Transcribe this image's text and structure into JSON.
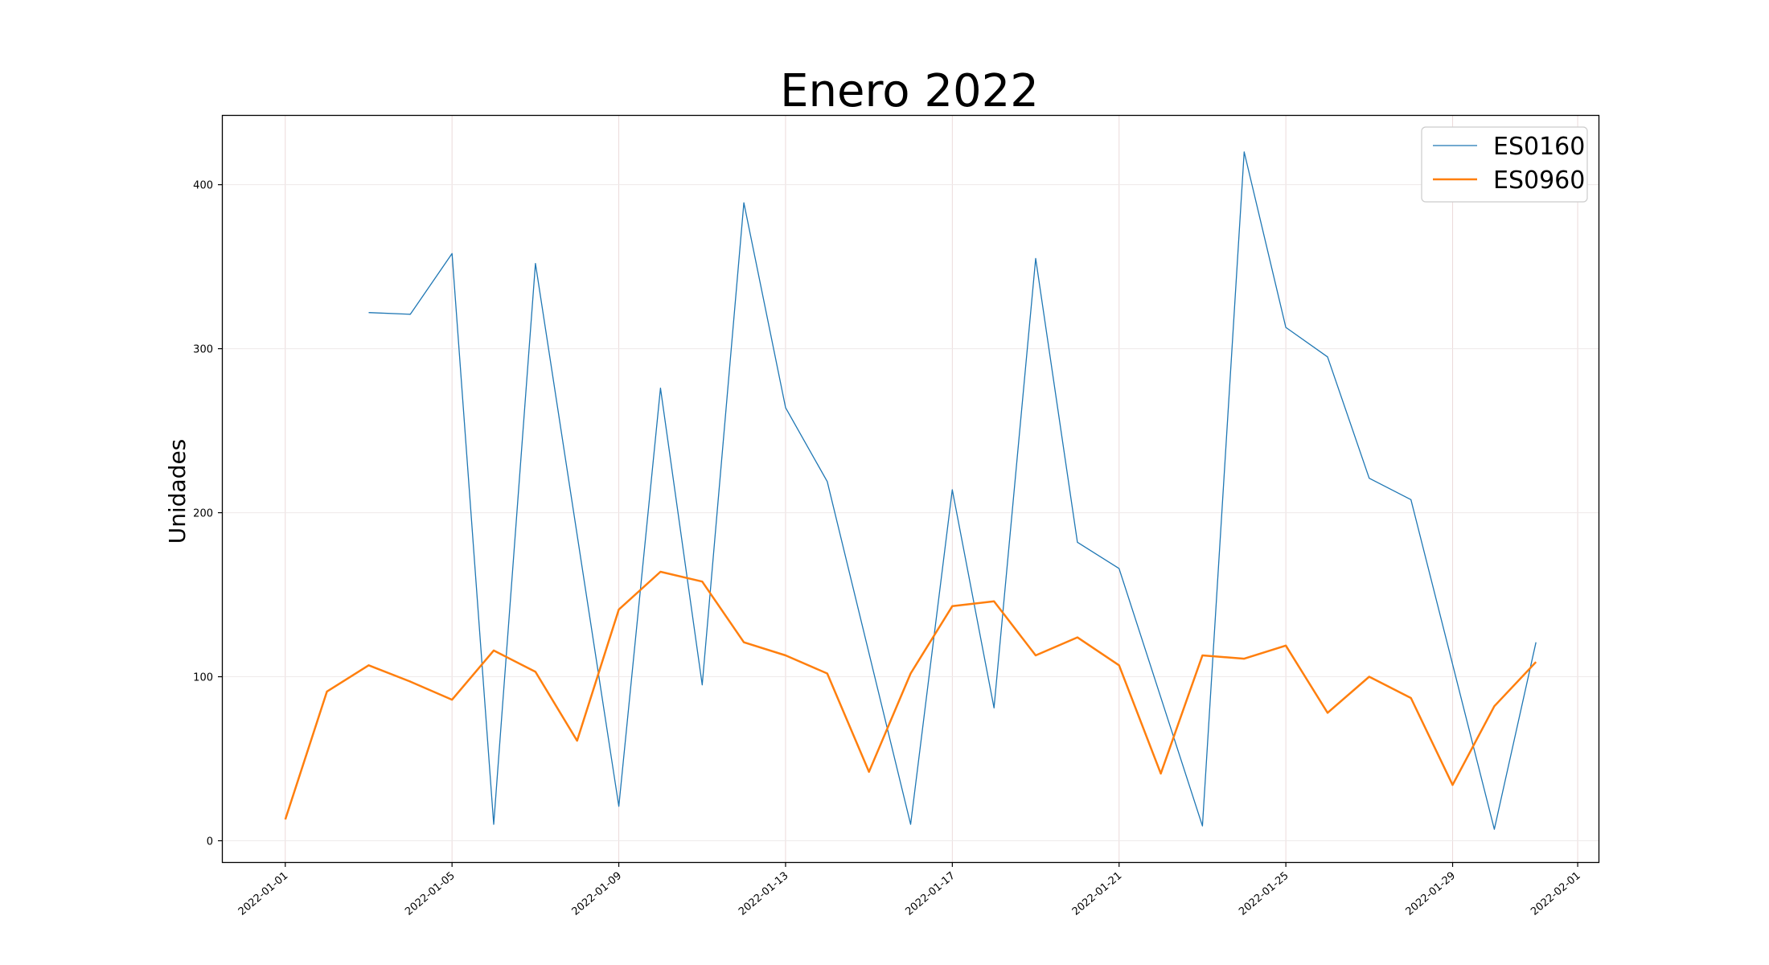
{
  "chart_data": {
    "type": "line",
    "title": "Enero 2022",
    "xlabel": "",
    "ylabel": "Unidades",
    "ylim": [
      -13,
      442
    ],
    "xlim_days": [
      -1.5,
      31.5
    ],
    "grid": true,
    "legend_position": "top-right",
    "x_ticks": [
      {
        "day": 0,
        "label": "2022-01-01"
      },
      {
        "day": 4,
        "label": "2022-01-05"
      },
      {
        "day": 8,
        "label": "2022-01-09"
      },
      {
        "day": 12,
        "label": "2022-01-13"
      },
      {
        "day": 16,
        "label": "2022-01-17"
      },
      {
        "day": 20,
        "label": "2022-01-21"
      },
      {
        "day": 24,
        "label": "2022-01-25"
      },
      {
        "day": 28,
        "label": "2022-01-29"
      },
      {
        "day": 31,
        "label": "2022-02-01"
      }
    ],
    "y_ticks": [
      0,
      100,
      200,
      300,
      400
    ],
    "series": [
      {
        "name": "ES0160",
        "color": "#1f77b4",
        "points": [
          {
            "day": 2,
            "value": 322
          },
          {
            "day": 3,
            "value": 321
          },
          {
            "day": 4,
            "value": 358
          },
          {
            "day": 5,
            "value": 10
          },
          {
            "day": 6,
            "value": 352
          },
          {
            "day": 8,
            "value": 21
          },
          {
            "day": 9,
            "value": 276
          },
          {
            "day": 10,
            "value": 95
          },
          {
            "day": 11,
            "value": 389
          },
          {
            "day": 12,
            "value": 264
          },
          {
            "day": 13,
            "value": 219
          },
          {
            "day": 15,
            "value": 10
          },
          {
            "day": 16,
            "value": 214
          },
          {
            "day": 17,
            "value": 81
          },
          {
            "day": 18,
            "value": 355
          },
          {
            "day": 19,
            "value": 182
          },
          {
            "day": 20,
            "value": 166
          },
          {
            "day": 22,
            "value": 9
          },
          {
            "day": 23,
            "value": 420
          },
          {
            "day": 24,
            "value": 313
          },
          {
            "day": 25,
            "value": 295
          },
          {
            "day": 26,
            "value": 221
          },
          {
            "day": 27,
            "value": 208
          },
          {
            "day": 29,
            "value": 7
          },
          {
            "day": 30,
            "value": 121
          }
        ]
      },
      {
        "name": "ES0960",
        "color": "#ff7f0e",
        "points": [
          {
            "day": 0,
            "value": 13
          },
          {
            "day": 1,
            "value": 91
          },
          {
            "day": 2,
            "value": 107
          },
          {
            "day": 3,
            "value": 97
          },
          {
            "day": 4,
            "value": 86
          },
          {
            "day": 5,
            "value": 116
          },
          {
            "day": 6,
            "value": 103
          },
          {
            "day": 7,
            "value": 61
          },
          {
            "day": 8,
            "value": 141
          },
          {
            "day": 9,
            "value": 164
          },
          {
            "day": 10,
            "value": 158
          },
          {
            "day": 11,
            "value": 121
          },
          {
            "day": 12,
            "value": 113
          },
          {
            "day": 13,
            "value": 102
          },
          {
            "day": 14,
            "value": 42
          },
          {
            "day": 15,
            "value": 102
          },
          {
            "day": 16,
            "value": 143
          },
          {
            "day": 17,
            "value": 146
          },
          {
            "day": 18,
            "value": 113
          },
          {
            "day": 19,
            "value": 124
          },
          {
            "day": 20,
            "value": 107
          },
          {
            "day": 21,
            "value": 41
          },
          {
            "day": 22,
            "value": 113
          },
          {
            "day": 23,
            "value": 111
          },
          {
            "day": 24,
            "value": 119
          },
          {
            "day": 25,
            "value": 78
          },
          {
            "day": 26,
            "value": 100
          },
          {
            "day": 27,
            "value": 87
          },
          {
            "day": 28,
            "value": 34
          },
          {
            "day": 29,
            "value": 82
          },
          {
            "day": 30,
            "value": 109
          }
        ]
      }
    ]
  }
}
